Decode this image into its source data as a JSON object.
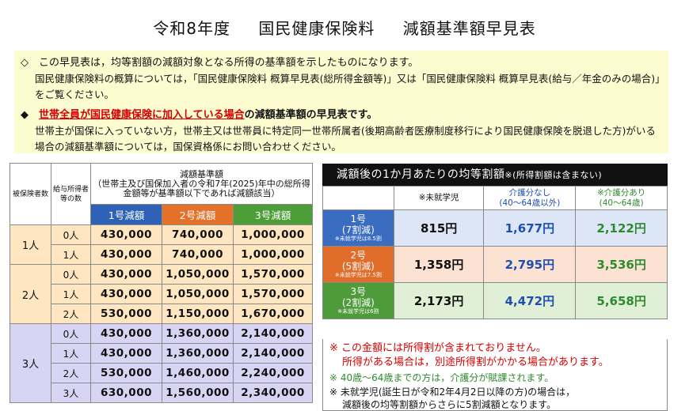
{
  "title": {
    "part1": "令和8年度",
    "part2": "国民健康保険料",
    "part3": "減額基準額早見表"
  },
  "notes": {
    "line1": "◇　この早見表は，均等割額の減額対象となる所得の基準額を示したものになります。",
    "line2": "国民健康保険料の概算については，「国民健康保険料 概算早見表(総所得金額等)」又は「国民健康保険料 概算早見表(給与／年金のみの場合)」をご覧ください。",
    "line3_prefix": "◆　",
    "line3_red": "世帯全員が国民健康保険に加入している場合",
    "line3_suffix": "の減額基準額の早見表です。",
    "line4": "世帯主が国保に入っていない方，世帯主又は世帯員に特定同一世帯所属者(後期高齢者医療制度移行により国民健康保険を脱退した方)がいる場合の減額基準額については，国保資格係にお問い合わせください。"
  },
  "left_table": {
    "col_insured": "被保険者数",
    "col_salary": "給与所得者等の数",
    "col_base_title": "減額基準額",
    "col_base_desc": "（世帯主及び国保加入者の令和7年(2025)年中の総所得金額等が基準額以下であれば減額該当）",
    "col1": "1号減額",
    "col2": "2号減額",
    "col3": "3号減額",
    "groups": [
      {
        "label": "1人",
        "rows": [
          {
            "count": "0人",
            "v1": "430,000",
            "v2": "740,000",
            "v3": "1,000,000"
          },
          {
            "count": "1人",
            "v1": "430,000",
            "v2": "740,000",
            "v3": "1,000,000"
          }
        ]
      },
      {
        "label": "2人",
        "rows": [
          {
            "count": "0人",
            "v1": "430,000",
            "v2": "1,050,000",
            "v3": "1,570,000"
          },
          {
            "count": "1人",
            "v1": "430,000",
            "v2": "1,050,000",
            "v3": "1,570,000"
          },
          {
            "count": "2人",
            "v1": "530,000",
            "v2": "1,150,000",
            "v3": "1,670,000"
          }
        ]
      },
      {
        "label": "3人",
        "rows": [
          {
            "count": "0人",
            "v1": "430,000",
            "v2": "1,360,000",
            "v3": "2,140,000"
          },
          {
            "count": "1人",
            "v1": "430,000",
            "v2": "1,360,000",
            "v3": "2,140,000"
          },
          {
            "count": "2人",
            "v1": "530,000",
            "v2": "1,460,000",
            "v3": "2,240,000"
          },
          {
            "count": "3人",
            "v1": "630,000",
            "v2": "1,560,000",
            "v3": "2,340,000"
          }
        ]
      }
    ]
  },
  "right_table": {
    "header": "減額後の1か月あたりの均等割額",
    "header_note": "※(所得割額は含まない)",
    "col1": "※未就学児",
    "col2": "介護分なし\n(40～64歳以外)",
    "col3": "※介護分あり\n(40～64歳)",
    "rows": [
      {
        "label1": "1号",
        "label2": "(7割減)",
        "note": "※未就学児は8.5割",
        "v1": "815円",
        "v2": "1,677円",
        "v3": "2,122円"
      },
      {
        "label1": "2号",
        "label2": "(5割減)",
        "note": "※未就学児は7.5割",
        "v1": "1,358円",
        "v2": "2,795円",
        "v3": "3,536円"
      },
      {
        "label1": "3号",
        "label2": "(2割減)",
        "note": "※未就学児は6割",
        "v1": "2,173円",
        "v2": "4,472円",
        "v3": "5,658円"
      }
    ],
    "notes": {
      "red1": "※ この金額には所得割が含まれておりません。",
      "red2": "所得がある場合は，別途所得割がかかる場合があります。",
      "green": "※ 40歳～64歳までの方は，介護分が賦課されます。",
      "blk1": "※ 未就学児(誕生日が令和2年4月2日以降の方)の場合は，",
      "blk2": "減額後の均等割額からさらに5割減額となります。"
    }
  }
}
